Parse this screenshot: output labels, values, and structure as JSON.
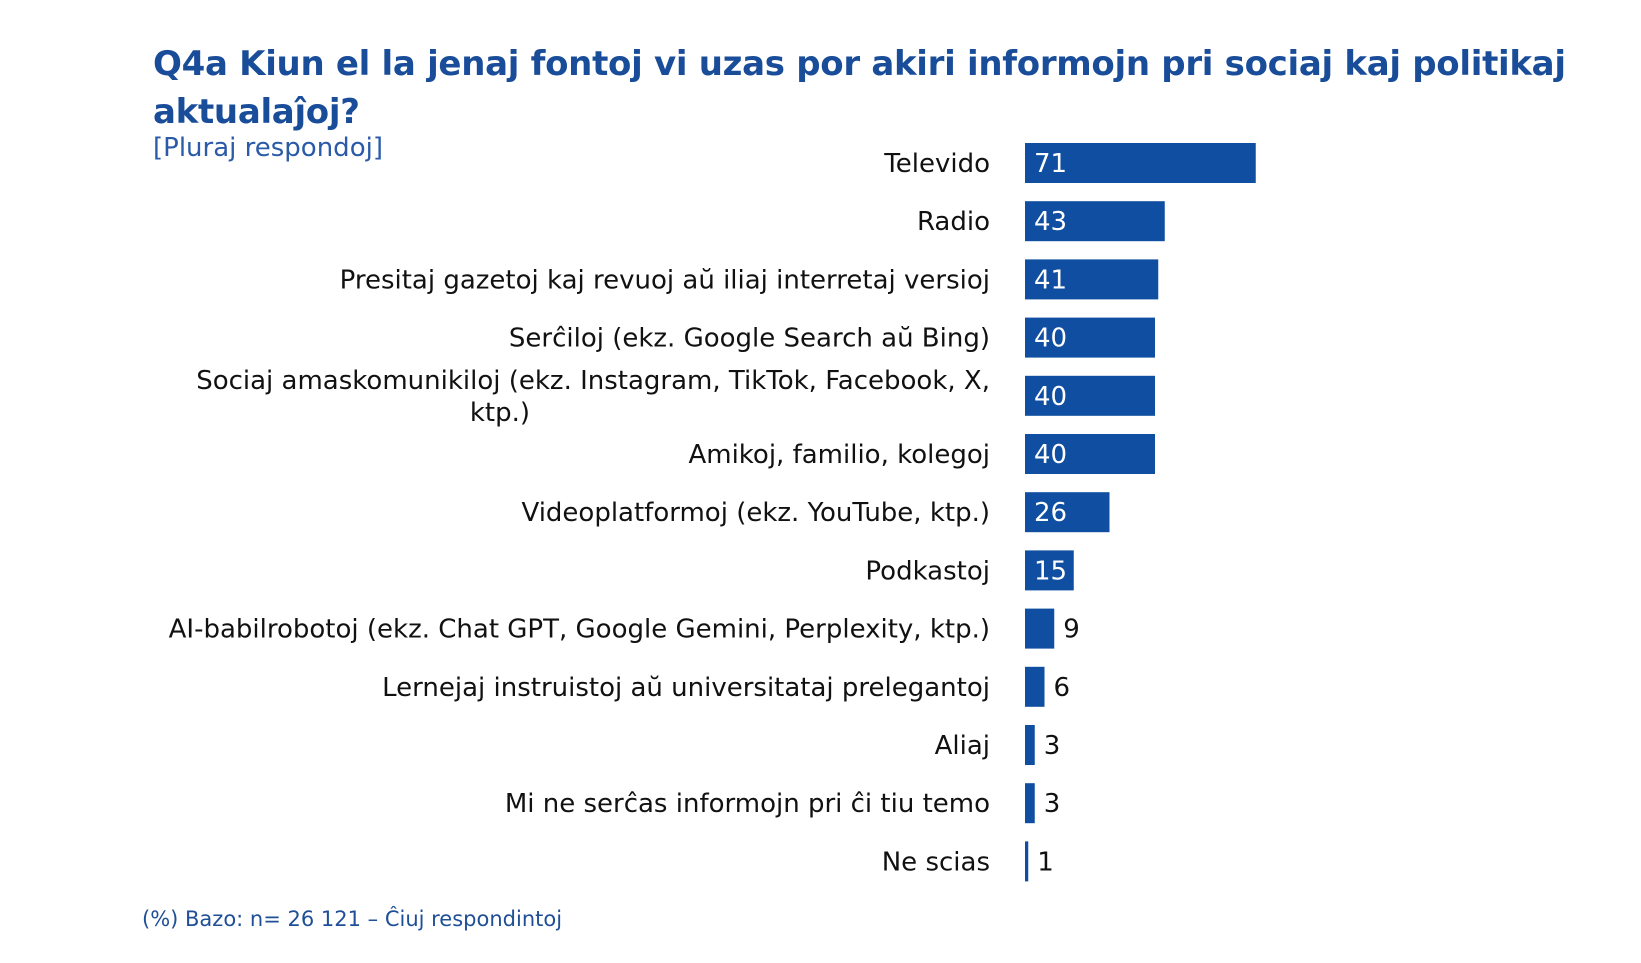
{
  "title": "Q4a Kiun el la jenaj fontoj vi uzas por akiri informojn pri sociaj kaj politikaj aktualaĵoj?",
  "subtitle": "[Pluraj respondoj]",
  "footnote": "(%) Bazo: n= 26 121 – Ĉiuj respondintoj",
  "colors": {
    "bar": "#0f4ea0",
    "title": "#1a4d99"
  },
  "chart_data": {
    "type": "bar",
    "orientation": "horizontal",
    "unit": "%",
    "categories": [
      [
        "Televido"
      ],
      [
        "Radio"
      ],
      [
        "Presitaj gazetoj kaj revuoj aŭ iliaj interretaj versioj"
      ],
      [
        "Serĉiloj (ekz. Google Search aŭ Bing)"
      ],
      [
        "Sociaj amaskomunikiloj (ekz. Instagram, TikTok, Facebook, X,",
        "ktp.)"
      ],
      [
        "Amikoj, familio, kolegoj"
      ],
      [
        "Videoplatformoj (ekz. YouTube, ktp.)"
      ],
      [
        "Podkastoj"
      ],
      [
        "AI-babilrobotoj (ekz. Chat GPT, Google Gemini, Perplexity, ktp.)"
      ],
      [
        "Lernejaj instruistoj aŭ universitataj prelegantoj"
      ],
      [
        "Aliaj"
      ],
      [
        "Mi ne serĉas informojn pri ĉi tiu temo"
      ],
      [
        "Ne scias"
      ]
    ],
    "values": [
      71,
      43,
      41,
      40,
      40,
      40,
      26,
      15,
      9,
      6,
      3,
      3,
      1
    ],
    "value_labels": [
      "71",
      "43",
      "41",
      "40",
      "40",
      "40",
      "26",
      "15",
      "9",
      "6",
      "3",
      "3",
      "1"
    ],
    "xlim": [
      0,
      100
    ]
  }
}
